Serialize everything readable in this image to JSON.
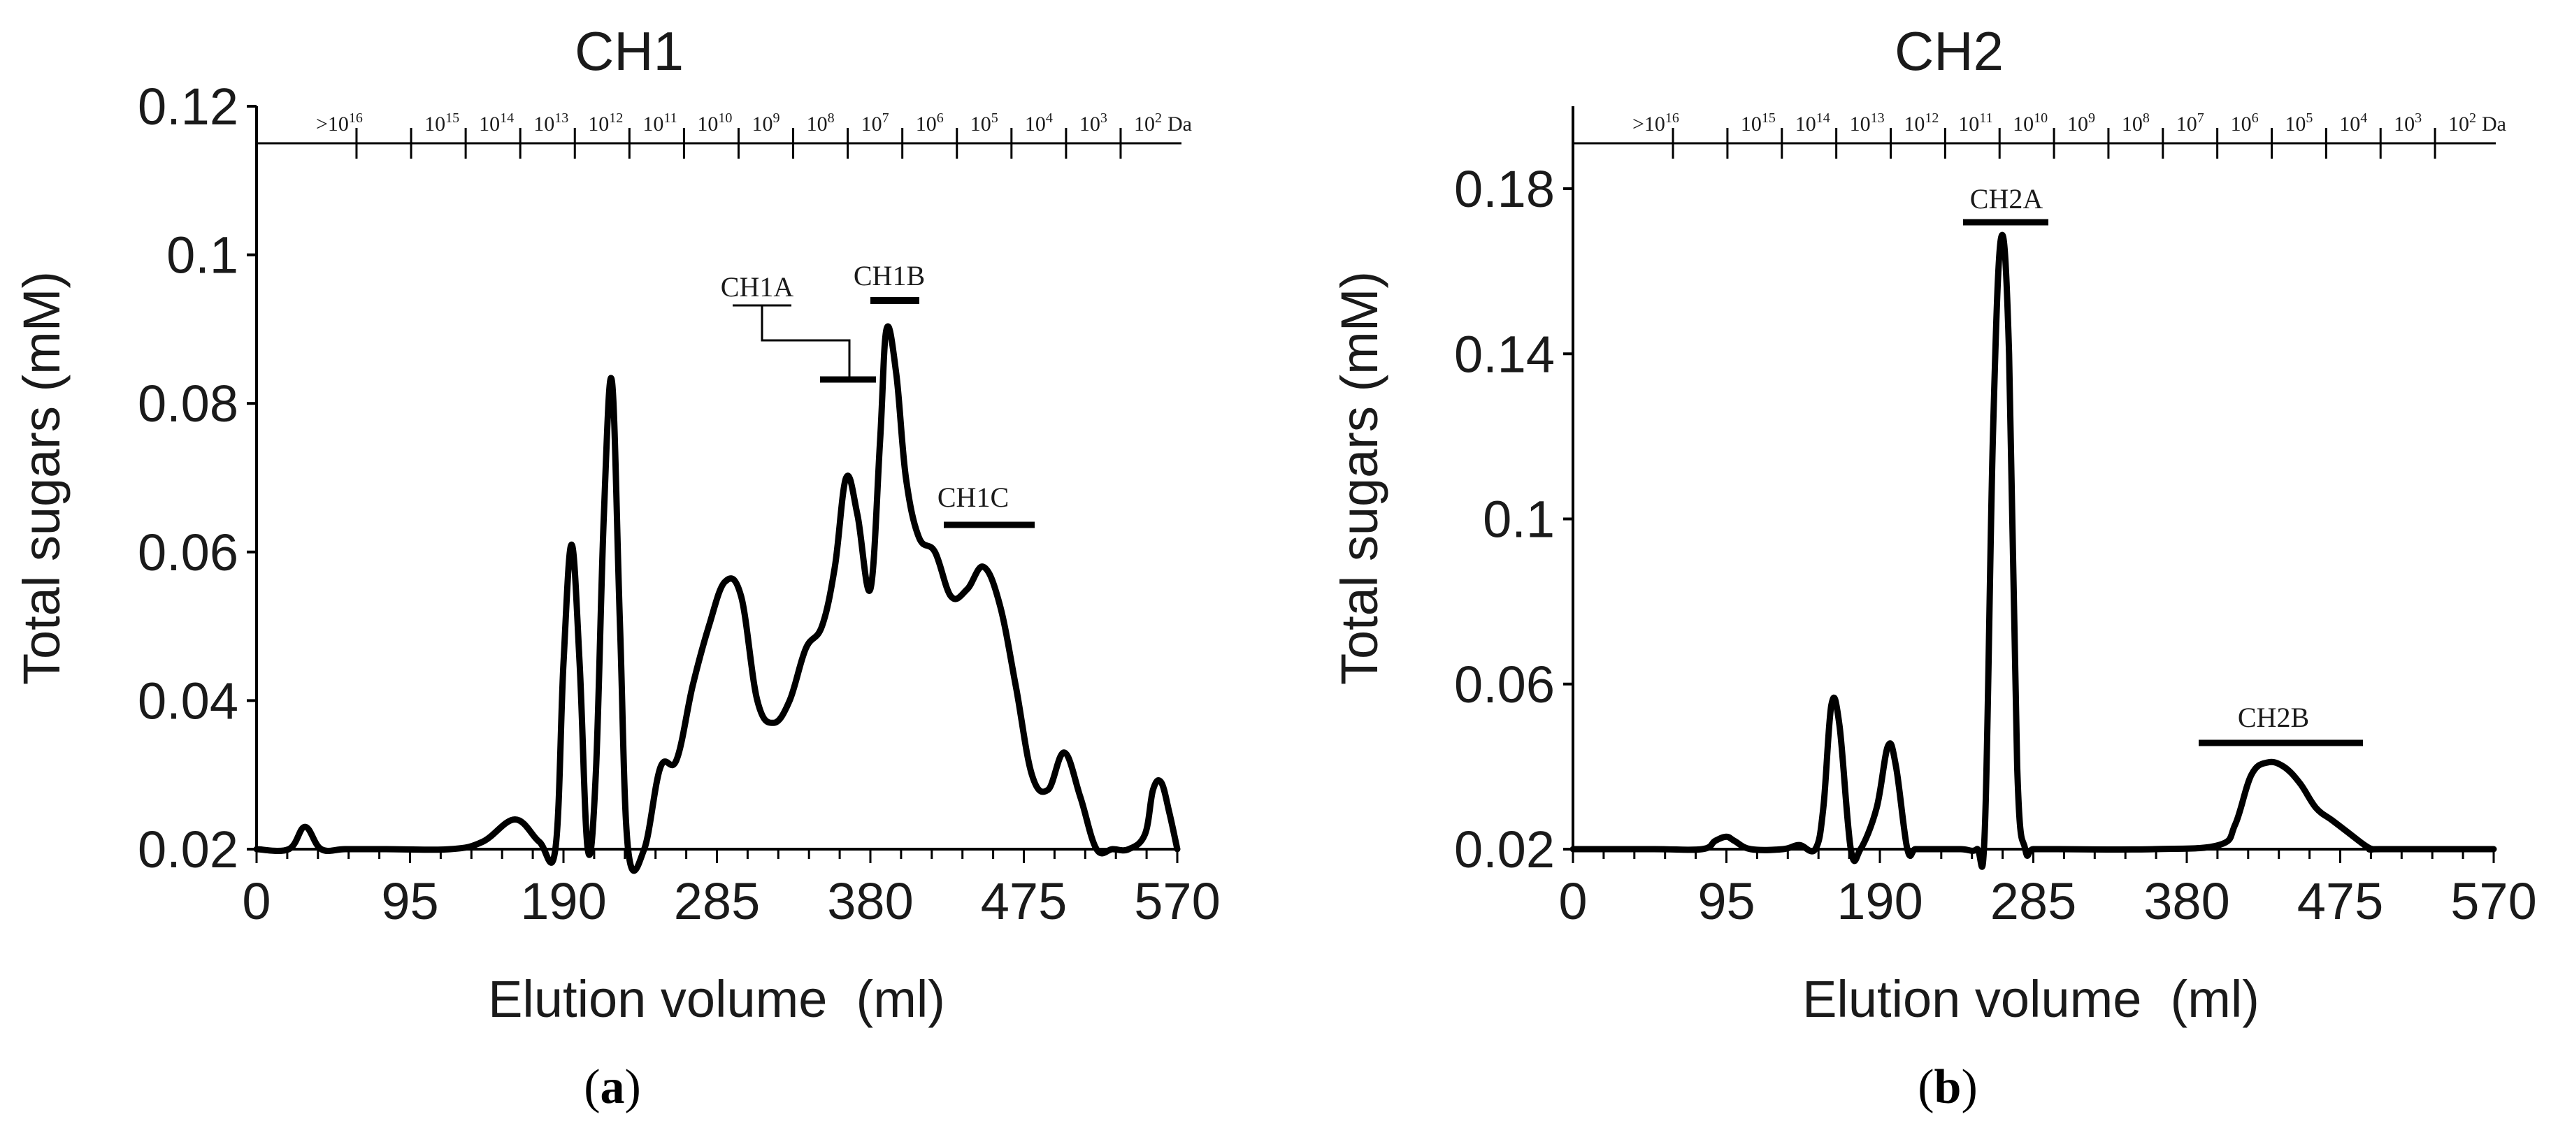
{
  "panels": [
    {
      "caption_letter": "a",
      "caption_open": "(",
      "caption_close": ")",
      "chart_data": {
        "type": "line",
        "title": "CH1",
        "xlabel": "Elution volume  (ml)",
        "ylabel": "Total sugars (mM)",
        "xlim": [
          0,
          570
        ],
        "ylim": [
          0.02,
          0.12
        ],
        "x_ticks": [
          "0",
          "95",
          "190",
          "285",
          "380",
          "475",
          "570"
        ],
        "y_ticks": [
          "0.02",
          "0.04",
          "0.06",
          "0.08",
          "0.1",
          "0.12"
        ],
        "grid": false,
        "series": [
          {
            "x": [
              0,
              20,
              30,
              40,
              55,
              80,
              120,
              140,
              160,
              175,
              185,
              190,
              195,
              200,
              205,
              210,
              215,
              220,
              225,
              230,
              240,
              250,
              260,
              270,
              280,
              290,
              300,
              310,
              320,
              330,
              340,
              350,
              358,
              365,
              372,
              380,
              386,
              390,
              396,
              402,
              410,
              420,
              430,
              440,
              450,
              460,
              470,
              480,
              490,
              500,
              510,
              520,
              530,
              540,
              550,
              555,
              560,
              565,
              570
            ],
            "y": [
              0.02,
              0.02,
              0.023,
              0.02,
              0.02,
              0.02,
              0.02,
              0.021,
              0.024,
              0.021,
              0.02,
              0.045,
              0.061,
              0.045,
              0.02,
              0.03,
              0.065,
              0.083,
              0.05,
              0.02,
              0.02,
              0.031,
              0.032,
              0.042,
              0.05,
              0.056,
              0.054,
              0.04,
              0.037,
              0.04,
              0.047,
              0.05,
              0.058,
              0.07,
              0.065,
              0.055,
              0.075,
              0.09,
              0.084,
              0.07,
              0.062,
              0.06,
              0.054,
              0.055,
              0.058,
              0.053,
              0.042,
              0.03,
              0.028,
              0.033,
              0.027,
              0.02,
              0.02,
              0.02,
              0.022,
              0.028,
              0.029,
              0.025,
              0.02
            ]
          }
        ],
        "mw_scale": {
          "labels": [
            ">10",
            "10",
            "10",
            "10",
            "10",
            "10",
            "10",
            "10",
            "10",
            "10",
            "10",
            "10",
            "10",
            "10",
            "10"
          ],
          "exponents": [
            "16",
            "15",
            "14",
            "13",
            "12",
            "11",
            "10",
            "9",
            "8",
            "7",
            "6",
            "5",
            "4",
            "3",
            "2"
          ],
          "unit": "Da"
        },
        "annotations": [
          {
            "label": "CH1A"
          },
          {
            "label": "CH1B"
          },
          {
            "label": "CH1C"
          }
        ]
      }
    },
    {
      "caption_letter": "b",
      "caption_open": "(",
      "caption_close": ")",
      "chart_data": {
        "type": "line",
        "title": "CH2",
        "xlabel": "Elution volume  (ml)",
        "ylabel": "Total sugars (mM)",
        "xlim": [
          0,
          570
        ],
        "ylim": [
          0.02,
          0.2
        ],
        "x_ticks": [
          "0",
          "95",
          "190",
          "285",
          "380",
          "475",
          "570"
        ],
        "y_ticks": [
          "0.02",
          "0.06",
          "0.1",
          "0.14",
          "0.18"
        ],
        "grid": false,
        "series": [
          {
            "x": [
              0,
              50,
              80,
              88,
              95,
              100,
              110,
              130,
              140,
              150,
              155,
              160,
              165,
              172,
              178,
              188,
              195,
              200,
              207,
              212,
              220,
              240,
              250,
              255,
              260,
              265,
              270,
              275,
              280,
              285,
              300,
              360,
              400,
              410,
              420,
              430,
              440,
              450,
              460,
              470,
              480,
              490,
              495,
              500,
              570
            ],
            "y": [
              0.02,
              0.02,
              0.02,
              0.022,
              0.023,
              0.022,
              0.02,
              0.02,
              0.021,
              0.02,
              0.03,
              0.055,
              0.05,
              0.02,
              0.02,
              0.03,
              0.045,
              0.04,
              0.02,
              0.02,
              0.02,
              0.02,
              0.02,
              0.025,
              0.12,
              0.168,
              0.14,
              0.04,
              0.02,
              0.02,
              0.02,
              0.02,
              0.021,
              0.026,
              0.038,
              0.041,
              0.04,
              0.036,
              0.03,
              0.027,
              0.024,
              0.021,
              0.02,
              0.02,
              0.02
            ]
          }
        ],
        "mw_scale": {
          "labels": [
            ">10",
            "10",
            "10",
            "10",
            "10",
            "10",
            "10",
            "10",
            "10",
            "10",
            "10",
            "10",
            "10",
            "10",
            "10"
          ],
          "exponents": [
            "16",
            "15",
            "14",
            "13",
            "12",
            "11",
            "10",
            "9",
            "8",
            "7",
            "6",
            "5",
            "4",
            "3",
            "2"
          ],
          "unit": "Da"
        },
        "annotations": [
          {
            "label": "CH2A"
          },
          {
            "label": "CH2B"
          }
        ]
      }
    }
  ]
}
